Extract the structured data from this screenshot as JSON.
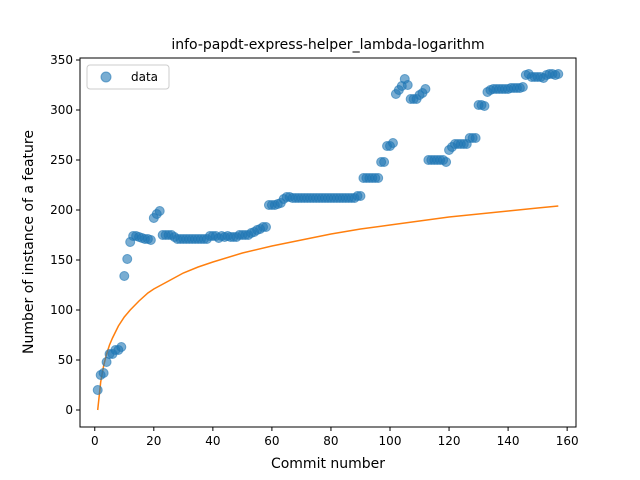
{
  "chart_data": {
    "type": "scatter",
    "title": "info-papdt-express-helper_lambda-logarithm",
    "xlabel": "Commit number",
    "ylabel": "Number of instance of a feature",
    "xlim": [
      -5,
      163
    ],
    "ylim": [
      -17,
      352
    ],
    "xticks": [
      0,
      20,
      40,
      60,
      80,
      100,
      120,
      140,
      160
    ],
    "yticks": [
      0,
      50,
      100,
      150,
      200,
      250,
      300,
      350
    ],
    "legend": {
      "placement": "top-left",
      "entries": [
        "data"
      ]
    },
    "colors": {
      "data": "#1f77b4",
      "fit": "#ff7f0e"
    },
    "series": [
      {
        "name": "data",
        "kind": "points",
        "x": [
          1,
          2,
          3,
          4,
          5,
          6,
          7,
          8,
          9,
          10,
          11,
          12,
          13,
          14,
          15,
          16,
          17,
          18,
          19,
          20,
          21,
          22,
          23,
          24,
          25,
          26,
          27,
          28,
          29,
          30,
          31,
          32,
          33,
          34,
          35,
          36,
          37,
          38,
          39,
          40,
          41,
          42,
          43,
          44,
          45,
          46,
          47,
          48,
          49,
          50,
          51,
          52,
          53,
          54,
          55,
          56,
          57,
          58,
          59,
          60,
          61,
          62,
          63,
          64,
          65,
          66,
          67,
          68,
          69,
          70,
          71,
          72,
          73,
          74,
          75,
          76,
          77,
          78,
          79,
          80,
          81,
          82,
          83,
          84,
          85,
          86,
          87,
          88,
          89,
          90,
          91,
          92,
          93,
          94,
          95,
          96,
          97,
          98,
          99,
          100,
          101,
          102,
          103,
          104,
          105,
          106,
          107,
          108,
          109,
          110,
          111,
          112,
          113,
          114,
          115,
          116,
          117,
          118,
          119,
          120,
          121,
          122,
          123,
          124,
          125,
          126,
          127,
          128,
          129,
          130,
          131,
          132,
          133,
          134,
          135,
          136,
          137,
          138,
          139,
          140,
          141,
          142,
          143,
          144,
          145,
          146,
          147,
          148,
          149,
          150,
          151,
          152,
          153,
          154,
          155,
          156,
          157
        ],
        "y": [
          20,
          35,
          37,
          48,
          56,
          56,
          60,
          60,
          63,
          134,
          151,
          168,
          174,
          174,
          173,
          172,
          171,
          171,
          170,
          192,
          196,
          199,
          175,
          175,
          175,
          175,
          173,
          171,
          171,
          171,
          171,
          171,
          171,
          171,
          171,
          171,
          171,
          171,
          174,
          174,
          174,
          172,
          174,
          173,
          174,
          173,
          173,
          173,
          175,
          175,
          175,
          175,
          177,
          178,
          180,
          181,
          183,
          183,
          205,
          205,
          205,
          206,
          207,
          211,
          213,
          213,
          212,
          212,
          212,
          212,
          212,
          212,
          212,
          212,
          212,
          212,
          212,
          212,
          212,
          212,
          212,
          212,
          212,
          212,
          212,
          212,
          212,
          212,
          214,
          214,
          232,
          232,
          232,
          232,
          232,
          232,
          248,
          248,
          264,
          264,
          267,
          316,
          320,
          324,
          331,
          325,
          311,
          311,
          311,
          315,
          317,
          321,
          250,
          250,
          250,
          250,
          250,
          250,
          248,
          260,
          263,
          266,
          266,
          266,
          266,
          266,
          272,
          272,
          272,
          305,
          305,
          304,
          318,
          320,
          321,
          321,
          321,
          321,
          321,
          321,
          322,
          322,
          322,
          322,
          323,
          335,
          336,
          333,
          333,
          333,
          333,
          332,
          335,
          336,
          336,
          335,
          336
        ]
      },
      {
        "name": "",
        "kind": "line",
        "model": "a*ln(x)+b",
        "x": [
          1,
          2,
          3,
          4,
          5,
          6,
          8,
          10,
          12,
          15,
          18,
          20,
          25,
          30,
          35,
          40,
          50,
          60,
          70,
          80,
          90,
          100,
          110,
          120,
          130,
          140,
          150,
          157
        ],
        "y": [
          0,
          28,
          44,
          56,
          65,
          72,
          84,
          93,
          100,
          109,
          117,
          121,
          129,
          137,
          143,
          148,
          157,
          164,
          170,
          176,
          181,
          185,
          189,
          193,
          196,
          199,
          202,
          204
        ]
      }
    ]
  }
}
